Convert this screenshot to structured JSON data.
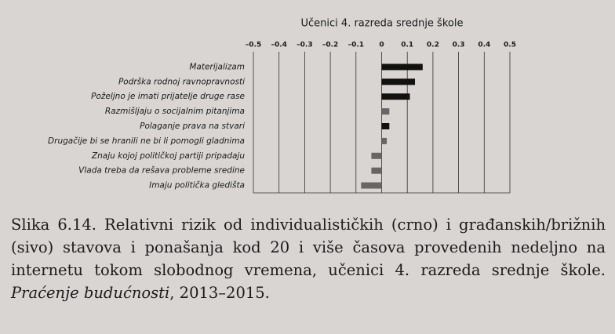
{
  "chart_data": {
    "type": "hbar",
    "title": "Učenici 4. razreda srednje škole",
    "categories": [
      "Materijalizam",
      "Podrška rodnoj ravnopravnosti",
      "Poželjno je imati prijatelje druge rase",
      "Razmišljaju o socijalnim pitanjima",
      "Polaganje prava na stvari",
      "Drugačije bi se hranili ne bi li pomogli gladnima",
      "Znaju kojoj političkoj partiji pripadaju",
      "Vlada treba da rešava probleme sredine",
      "Imaju politička gledišta"
    ],
    "values": [
      0.16,
      0.13,
      0.11,
      0.03,
      0.03,
      0.02,
      -0.04,
      -0.04,
      -0.08
    ],
    "colors": [
      "#111111",
      "#111111",
      "#111111",
      "#666666",
      "#111111",
      "#666666",
      "#666666",
      "#666666",
      "#666666"
    ],
    "xlim": [
      -0.5,
      0.5
    ],
    "xticks": [
      {
        "value": -0.5,
        "label": "–0.5"
      },
      {
        "value": -0.4,
        "label": "–0.4"
      },
      {
        "value": -0.3,
        "label": "–0.3"
      },
      {
        "value": -0.2,
        "label": "–0.2"
      },
      {
        "value": -0.1,
        "label": "–0.1"
      },
      0,
      0.1,
      0.2,
      0.3,
      0.4,
      0.5
    ],
    "grid": true
  },
  "caption": {
    "label": "Slika 6.14.",
    "text": "Relativni rizik od individualističkih (crno) i građanskih/brižnih (sivo) stavova i ponašanja kod 20 i više časova provedenih nedeljno na internetu tokom slobodnog vremena, učenici 4. razreda srednje škole.",
    "source": "Praćenje budućnosti",
    "years": ", 2013–2015."
  }
}
